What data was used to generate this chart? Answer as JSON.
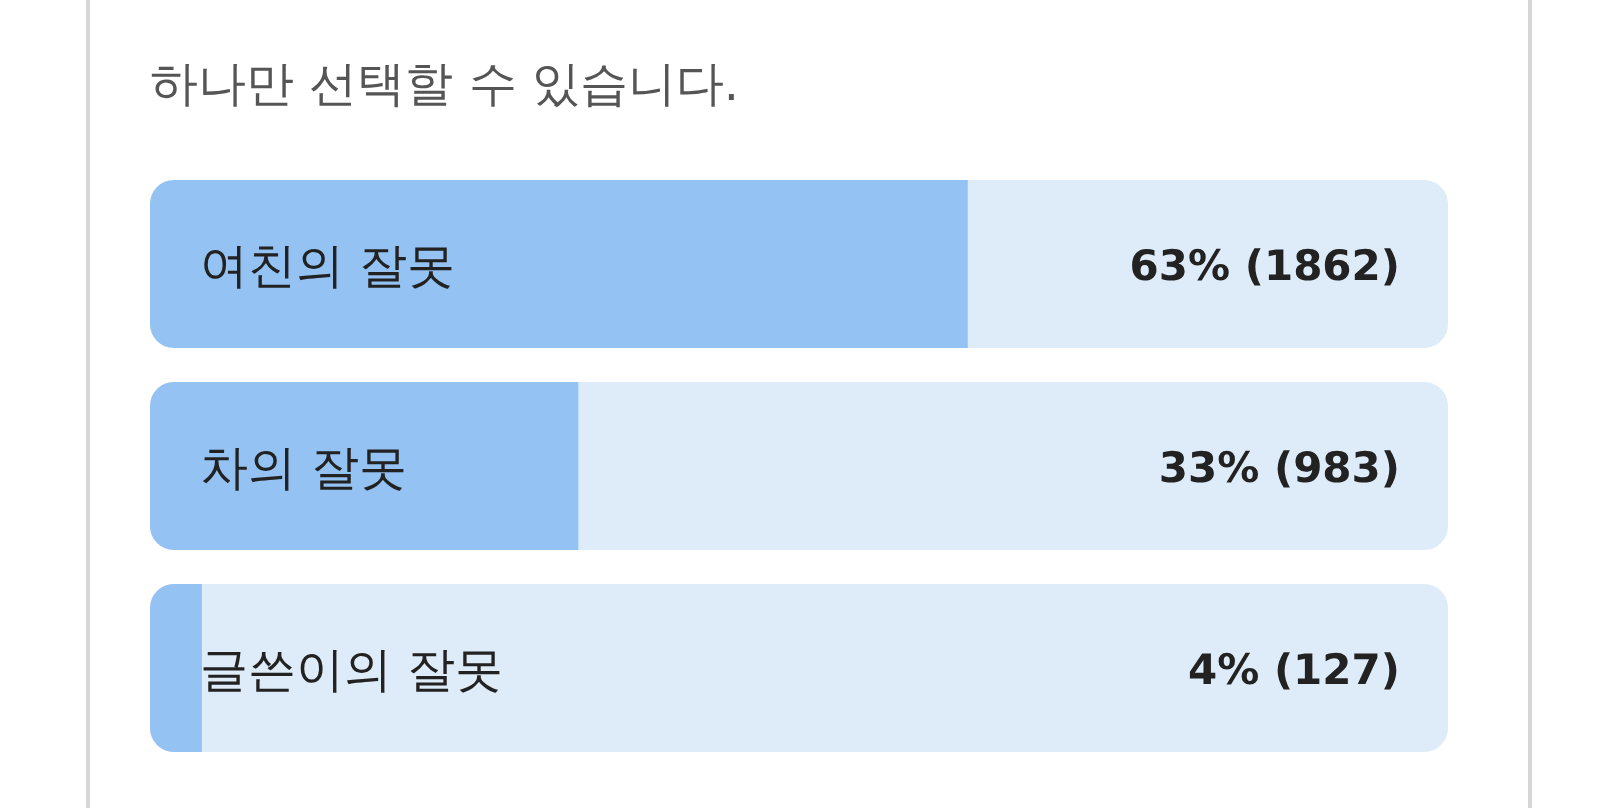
{
  "chart_data": {
    "type": "bar",
    "orientation": "horizontal",
    "title": "하나만 선택할 수 있습니다.",
    "categories": [
      "여친의 잘못",
      "차의 잘못",
      "글쓴이의 잘못"
    ],
    "values": [
      63,
      33,
      4
    ],
    "colors": [
      "#94c2f2",
      "#94c2f2",
      "#94c2f2"
    ],
    "value_labels": [
      "63% (1862)",
      "33% (983)",
      "4% (127)"
    ],
    "xlim": [
      0,
      100
    ],
    "tick_labels": false
  }
}
